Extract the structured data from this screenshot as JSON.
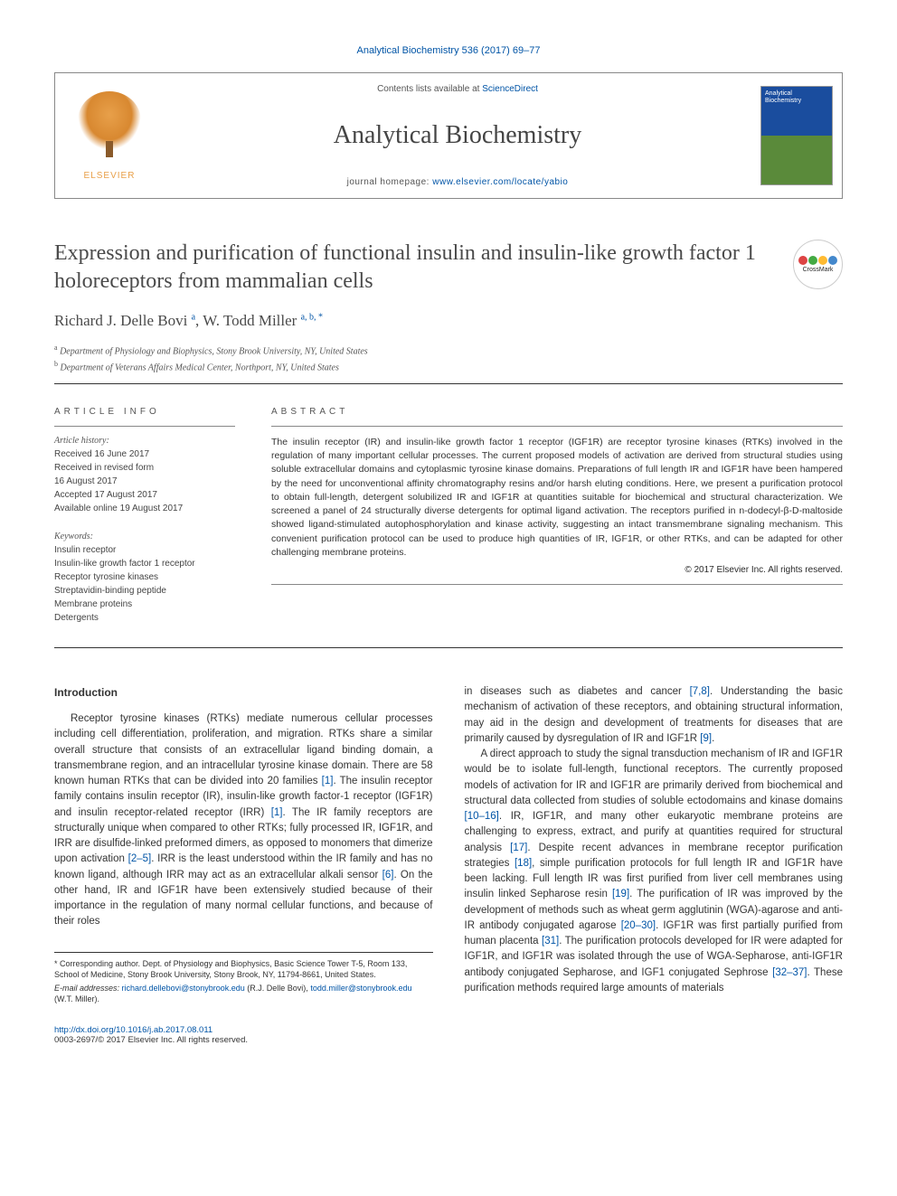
{
  "running_head": "Analytical Biochemistry 536 (2017) 69–77",
  "masthead": {
    "contents_prefix": "Contents lists available at ",
    "contents_link": "ScienceDirect",
    "journal_name": "Analytical Biochemistry",
    "homepage_prefix": "journal homepage: ",
    "homepage_url": "www.elsevier.com/locate/yabio",
    "publisher": "ELSEVIER",
    "cover_title": "Analytical Biochemistry"
  },
  "crossmark_label": "CrossMark",
  "article": {
    "title": "Expression and purification of functional insulin and insulin-like growth factor 1 holoreceptors from mammalian cells",
    "authors_html": "Richard J. Delle Bovi <sup>a</sup>, W. Todd Miller <sup>a, b, *</sup>",
    "affiliations": [
      {
        "sup": "a",
        "text": "Department of Physiology and Biophysics, Stony Brook University, NY, United States"
      },
      {
        "sup": "b",
        "text": "Department of Veterans Affairs Medical Center, Northport, NY, United States"
      }
    ]
  },
  "info": {
    "heading": "ARTICLE INFO",
    "history_label": "Article history:",
    "history": [
      "Received 16 June 2017",
      "Received in revised form",
      "16 August 2017",
      "Accepted 17 August 2017",
      "Available online 19 August 2017"
    ],
    "keywords_label": "Keywords:",
    "keywords": [
      "Insulin receptor",
      "Insulin-like growth factor 1 receptor",
      "Receptor tyrosine kinases",
      "Streptavidin-binding peptide",
      "Membrane proteins",
      "Detergents"
    ]
  },
  "abstract": {
    "heading": "ABSTRACT",
    "text": "The insulin receptor (IR) and insulin-like growth factor 1 receptor (IGF1R) are receptor tyrosine kinases (RTKs) involved in the regulation of many important cellular processes. The current proposed models of activation are derived from structural studies using soluble extracellular domains and cytoplasmic tyrosine kinase domains. Preparations of full length IR and IGF1R have been hampered by the need for unconventional affinity chromatography resins and/or harsh eluting conditions. Here, we present a purification protocol to obtain full-length, detergent solubilized IR and IGF1R at quantities suitable for biochemical and structural characterization. We screened a panel of 24 structurally diverse detergents for optimal ligand activation. The receptors purified in n-dodecyl-β-D-maltoside showed ligand-stimulated autophosphorylation and kinase activity, suggesting an intact transmembrane signaling mechanism. This convenient purification protocol can be used to produce high quantities of IR, IGF1R, or other RTKs, and can be adapted for other challenging membrane proteins.",
    "copyright": "© 2017 Elsevier Inc. All rights reserved."
  },
  "intro_heading": "Introduction",
  "col1_para1": "Receptor tyrosine kinases (RTKs) mediate numerous cellular processes including cell differentiation, proliferation, and migration. RTKs share a similar overall structure that consists of an extracellular ligand binding domain, a transmembrane region, and an intracellular tyrosine kinase domain. There are 58 known human RTKs that can be divided into 20 families [1]. The insulin receptor family contains insulin receptor (IR), insulin-like growth factor-1 receptor (IGF1R) and insulin receptor-related receptor (IRR) [1]. The IR family receptors are structurally unique when compared to other RTKs; fully processed IR, IGF1R, and IRR are disulfide-linked preformed dimers, as opposed to monomers that dimerize upon activation [2–5]. IRR is the least understood within the IR family and has no known ligand, although IRR may act as an extracellular alkali sensor [6]. On the other hand, IR and IGF1R have been extensively studied because of their importance in the regulation of many normal cellular functions, and because of their roles",
  "col2_para1": "in diseases such as diabetes and cancer [7,8]. Understanding the basic mechanism of activation of these receptors, and obtaining structural information, may aid in the design and development of treatments for diseases that are primarily caused by dysregulation of IR and IGF1R [9].",
  "col2_para2": "A direct approach to study the signal transduction mechanism of IR and IGF1R would be to isolate full-length, functional receptors. The currently proposed models of activation for IR and IGF1R are primarily derived from biochemical and structural data collected from studies of soluble ectodomains and kinase domains [10–16]. IR, IGF1R, and many other eukaryotic membrane proteins are challenging to express, extract, and purify at quantities required for structural analysis [17]. Despite recent advances in membrane receptor purification strategies [18], simple purification protocols for full length IR and IGF1R have been lacking. Full length IR was first purified from liver cell membranes using insulin linked Sepharose resin [19]. The purification of IR was improved by the development of methods such as wheat germ agglutinin (WGA)-agarose and anti-IR antibody conjugated agarose [20–30]. IGF1R was first partially purified from human placenta [31]. The purification protocols developed for IR were adapted for IGF1R, and IGF1R was isolated through the use of WGA-Sepharose, anti-IGF1R antibody conjugated Sepharose, and IGF1 conjugated Sephrose [32–37]. These purification methods required large amounts of materials",
  "footnotes": {
    "corr": "* Corresponding author. Dept. of Physiology and Biophysics, Basic Science Tower T-5, Room 133, School of Medicine, Stony Brook University, Stony Brook, NY, 11794-8661, United States.",
    "email_label": "E-mail addresses:",
    "email1": "richard.dellebovi@stonybrook.edu",
    "email1_name": "(R.J. Delle Bovi),",
    "email2": "todd.miller@stonybrook.edu",
    "email2_name": "(W.T. Miller)."
  },
  "footer": {
    "doi": "http://dx.doi.org/10.1016/j.ab.2017.08.011",
    "issn_line": "0003-2697/© 2017 Elsevier Inc. All rights reserved."
  },
  "refs": {
    "r1": "[1]",
    "r2_5": "[2–5]",
    "r6": "[6]",
    "r7_8": "[7,8]",
    "r9": "[9]",
    "r10_16": "[10–16]",
    "r17": "[17]",
    "r18": "[18]",
    "r19": "[19]",
    "r20_30": "[20–30]",
    "r31": "[31]",
    "r32_37": "[32–37]"
  }
}
